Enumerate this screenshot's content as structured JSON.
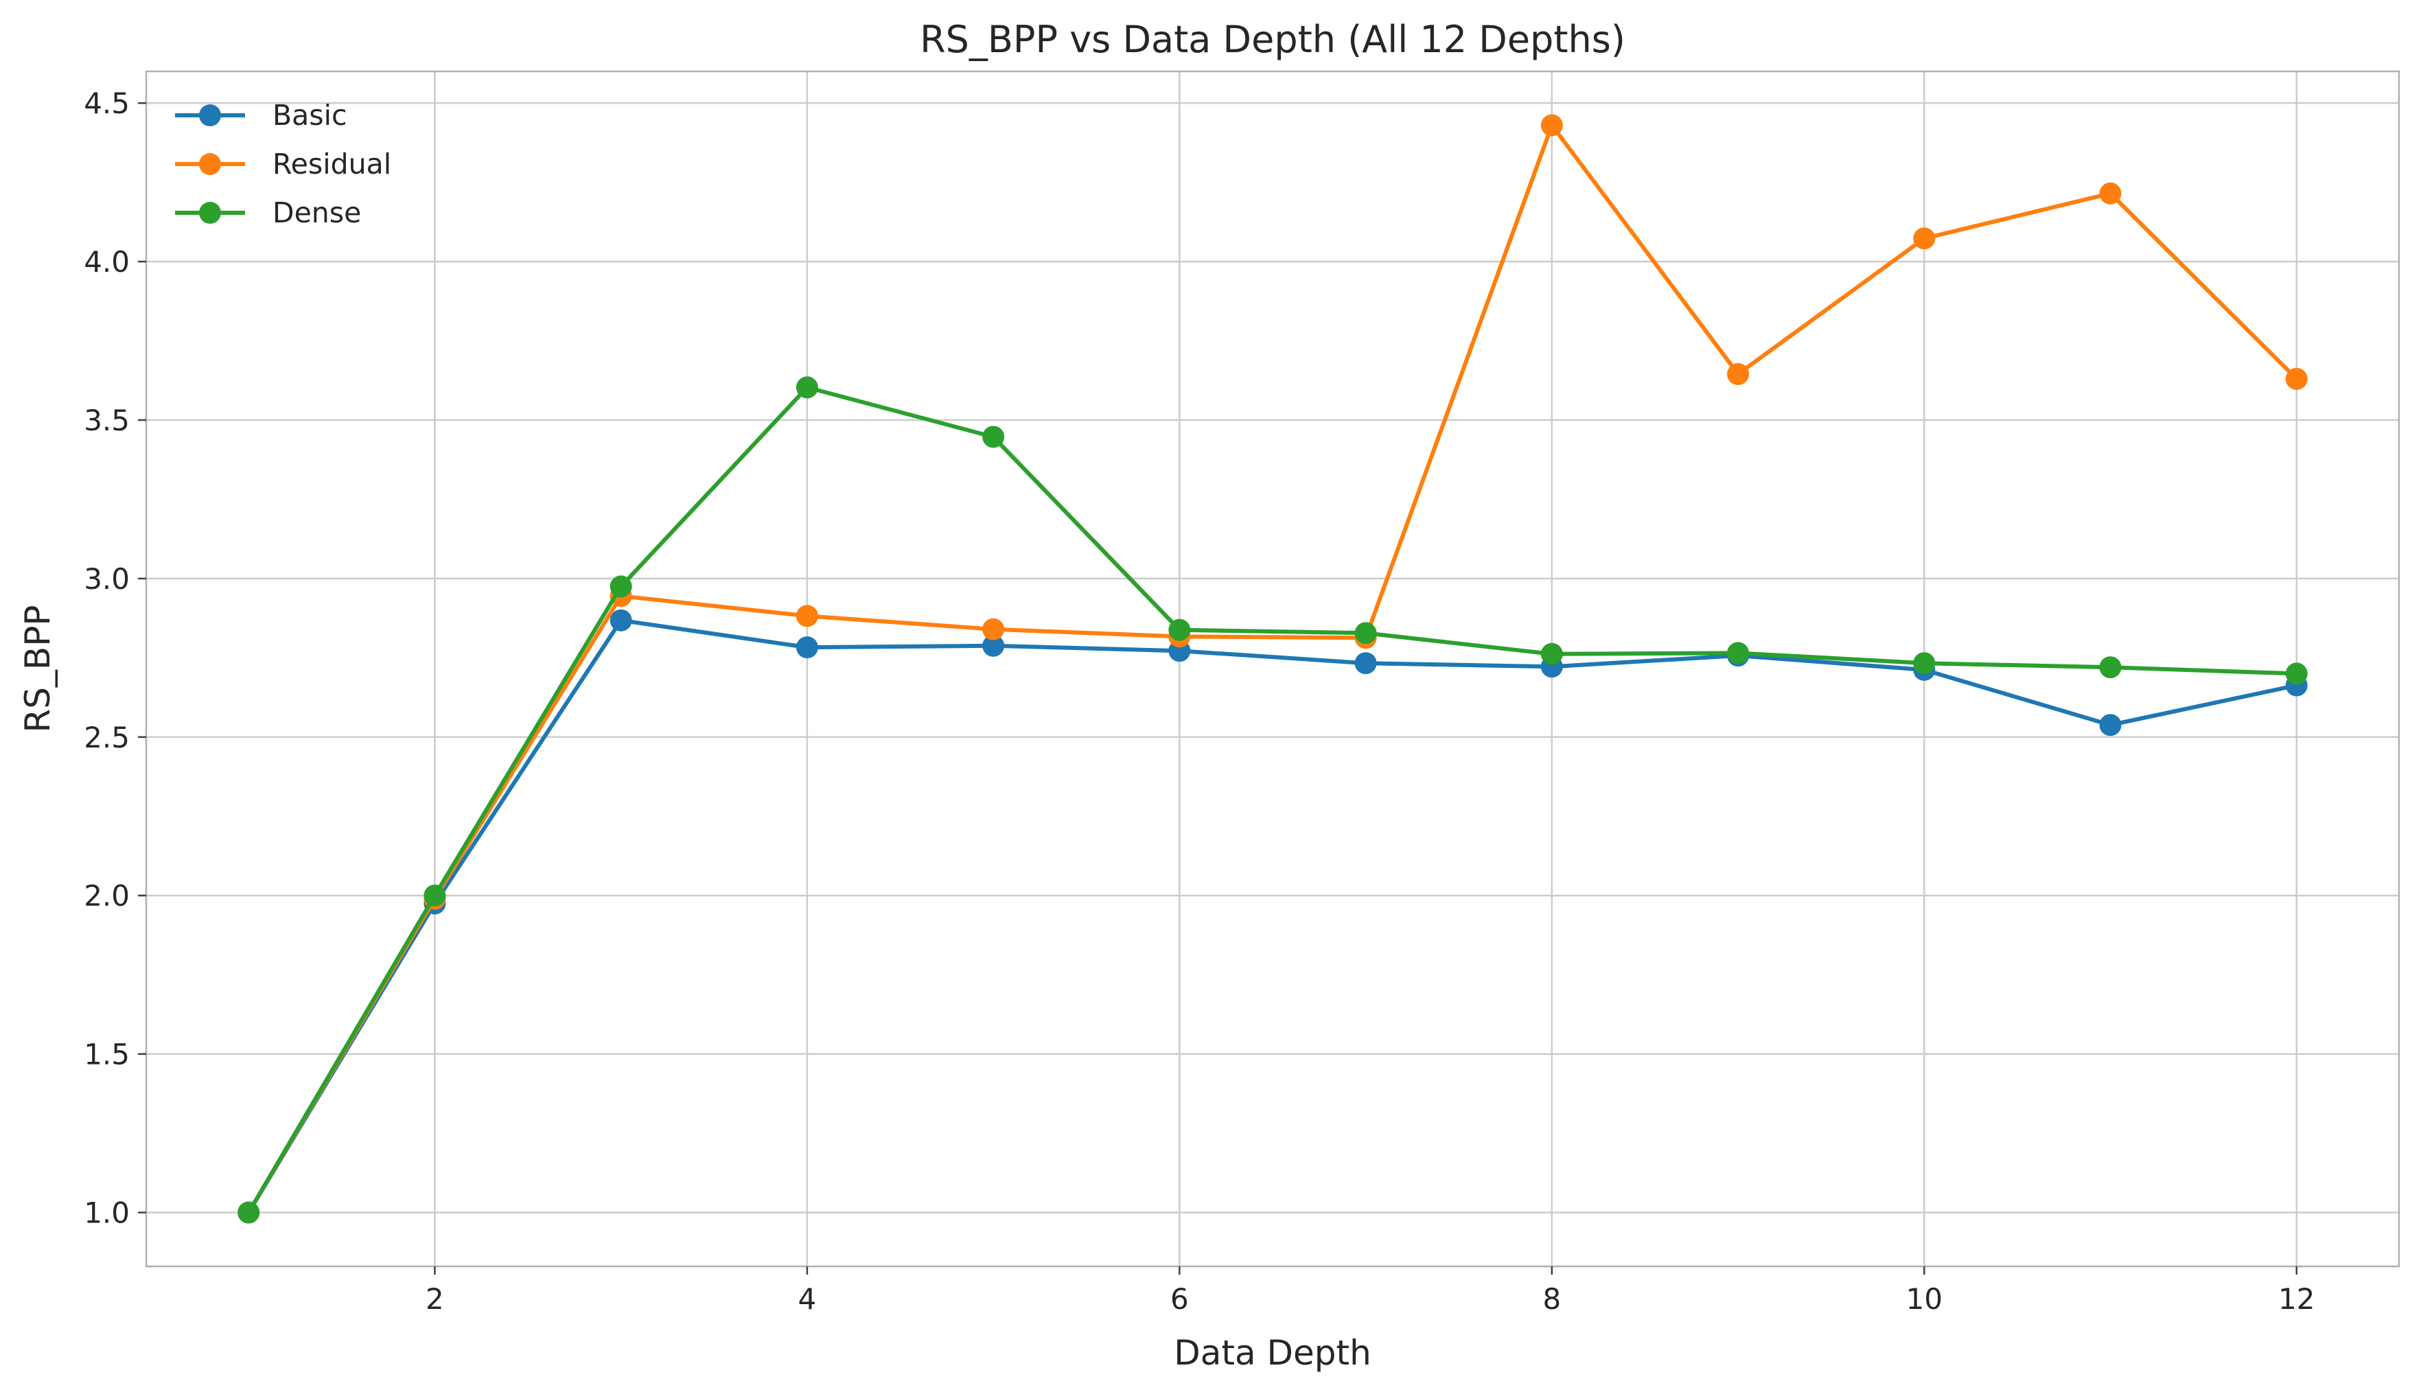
{
  "chart_data": {
    "type": "line",
    "title": "RS_BPP vs Data Depth (All 12 Depths)",
    "xlabel": "Data Depth",
    "ylabel": "RS_BPP",
    "x": [
      1,
      2,
      3,
      4,
      5,
      6,
      7,
      8,
      9,
      10,
      11,
      12
    ],
    "xlim": [
      0.45,
      12.55
    ],
    "ylim": [
      0.83,
      4.6
    ],
    "xticks": [
      2,
      4,
      6,
      8,
      10,
      12
    ],
    "xtick_labels": [
      "2",
      "4",
      "6",
      "8",
      "10",
      "12"
    ],
    "yticks": [
      1.0,
      1.5,
      2.0,
      2.5,
      3.0,
      3.5,
      4.0,
      4.5
    ],
    "ytick_labels": [
      "1.0",
      "1.5",
      "2.0",
      "2.5",
      "3.0",
      "3.5",
      "4.0",
      "4.5"
    ],
    "grid": true,
    "legend_position": "top-left",
    "series": [
      {
        "name": "Basic",
        "color": "#1f77b4",
        "values": [
          1.0,
          1.975,
          2.868,
          2.783,
          2.788,
          2.772,
          2.733,
          2.722,
          2.757,
          2.712,
          2.538,
          2.663
        ]
      },
      {
        "name": "Residual",
        "color": "#ff7f0e",
        "values": [
          1.0,
          1.99,
          2.945,
          2.882,
          2.84,
          2.817,
          2.813,
          4.43,
          3.645,
          4.073,
          4.215,
          3.63
        ]
      },
      {
        "name": "Dense",
        "color": "#2ca02c",
        "values": [
          1.0,
          2.0,
          2.975,
          3.603,
          3.447,
          2.838,
          2.828,
          2.762,
          2.765,
          2.733,
          2.72,
          2.7
        ]
      }
    ]
  }
}
